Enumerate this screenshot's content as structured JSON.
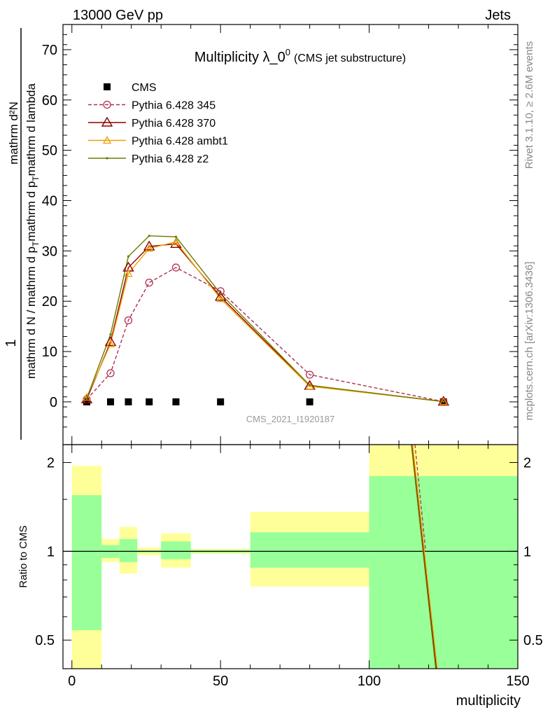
{
  "header": {
    "left": "13000 GeV pp",
    "right": "Jets"
  },
  "side_labels": {
    "rivet": "Rivet 3.1.10, ≥ 2.6M events",
    "mcplots": "mcplots.cern.ch [arXiv:1306.3436]"
  },
  "analysis_id": "CMS_2021_I1920187",
  "colors": {
    "data": "#000000",
    "p345": "#b03050",
    "p370": "#8b0000",
    "ambt1": "#f0a000",
    "z2": "#6b7a00",
    "band_inner": "#99ff99",
    "band_outer": "#ffff99",
    "ratio_line": "#000000"
  },
  "chart_data": [
    {
      "type": "line",
      "title": "Multiplicity λ_0",
      "title_sup": "0",
      "subtitle": "(CMS jet substructure)",
      "ylabel": {
        "numerator": "1",
        "numerator_extra": "mathrm d²N",
        "denominator": "mathrm d N / mathrm d p",
        "denominator_sub": "T",
        "denominator_rest": "mathrm d p",
        "denominator_sub2": "T",
        "denominator_end": "mathrm d lambda"
      },
      "xlim": [
        -3,
        150
      ],
      "ylim": [
        -8.5,
        75
      ],
      "yticks": [
        0,
        10,
        20,
        30,
        40,
        50,
        60,
        70
      ],
      "legend_position": "top-left",
      "series": [
        {
          "name": "CMS",
          "style": "data",
          "x": [
            5,
            13,
            19,
            26,
            35,
            50,
            80,
            125
          ],
          "y": [
            0,
            0,
            0,
            0,
            0,
            0,
            0,
            0
          ]
        },
        {
          "name": "Pythia 6.428 345",
          "style": "p345",
          "x": [
            5,
            13,
            19,
            26,
            35,
            50,
            80,
            125
          ],
          "y": [
            0.5,
            5.7,
            16.2,
            23.7,
            26.7,
            22.0,
            5.4,
            0.05
          ]
        },
        {
          "name": "Pythia 6.428 370",
          "style": "p370",
          "x": [
            5,
            13,
            19,
            26,
            35,
            50,
            80,
            125
          ],
          "y": [
            0.5,
            11.9,
            26.7,
            30.9,
            31.4,
            20.9,
            3.2,
            0.05
          ]
        },
        {
          "name": "Pythia 6.428 ambt1",
          "style": "ambt1",
          "x": [
            5,
            13,
            19,
            26,
            35,
            50,
            80,
            125
          ],
          "y": [
            0.9,
            11.5,
            25.5,
            30.5,
            31.8,
            20.5,
            3.1,
            0.05
          ]
        },
        {
          "name": "Pythia 6.428 z2",
          "style": "z2",
          "x": [
            5,
            13,
            19,
            26,
            35,
            50,
            80,
            125
          ],
          "y": [
            0.7,
            13.4,
            28.9,
            33.0,
            32.8,
            21.5,
            3.3,
            0.05
          ]
        }
      ]
    },
    {
      "type": "area",
      "ylabel": "Ratio to CMS",
      "xlabel": "multiplicity",
      "xlim": [
        -3,
        150
      ],
      "ylim": [
        0.4,
        2.3
      ],
      "ylog": true,
      "xticks": [
        0,
        50,
        100,
        150
      ],
      "yticks": [
        0.5,
        1,
        2
      ],
      "bands": [
        {
          "x0": 0,
          "x1": 10,
          "inner": [
            0.54,
            1.55
          ],
          "outer": [
            0.3,
            1.95
          ]
        },
        {
          "x0": 10,
          "x1": 16,
          "inner": [
            0.95,
            1.05
          ],
          "outer": [
            0.92,
            1.1
          ]
        },
        {
          "x0": 16,
          "x1": 22,
          "inner": [
            0.92,
            1.1
          ],
          "outer": [
            0.84,
            1.21
          ]
        },
        {
          "x0": 22,
          "x1": 30,
          "inner": [
            0.99,
            1.01
          ],
          "outer": [
            0.97,
            1.03
          ]
        },
        {
          "x0": 30,
          "x1": 40,
          "inner": [
            0.94,
            1.08
          ],
          "outer": [
            0.88,
            1.15
          ]
        },
        {
          "x0": 40,
          "x1": 60,
          "inner": [
            0.99,
            1.01
          ],
          "outer": [
            0.98,
            1.02
          ]
        },
        {
          "x0": 60,
          "x1": 100,
          "inner": [
            0.88,
            1.16
          ],
          "outer": [
            0.76,
            1.36
          ]
        },
        {
          "x0": 100,
          "x1": 150,
          "inner": [
            0.3,
            1.8
          ],
          "outer": [
            0.3,
            2.5
          ]
        }
      ],
      "ratio_lines": [
        {
          "style": "p345",
          "x": [
            115.4,
            119.0
          ],
          "y": [
            2.35,
            1.0
          ],
          "dashed": true
        },
        {
          "style": "p370",
          "x": [
            114.4,
            122.6
          ],
          "y": [
            2.35,
            0.3
          ],
          "dashed": false
        },
        {
          "style": "ambt1",
          "x": [
            114.6,
            122.9
          ],
          "y": [
            2.35,
            0.3
          ],
          "dashed": false
        },
        {
          "style": "z2",
          "x": [
            114.2,
            122.4
          ],
          "y": [
            2.35,
            0.3
          ],
          "dashed": false
        }
      ]
    }
  ]
}
